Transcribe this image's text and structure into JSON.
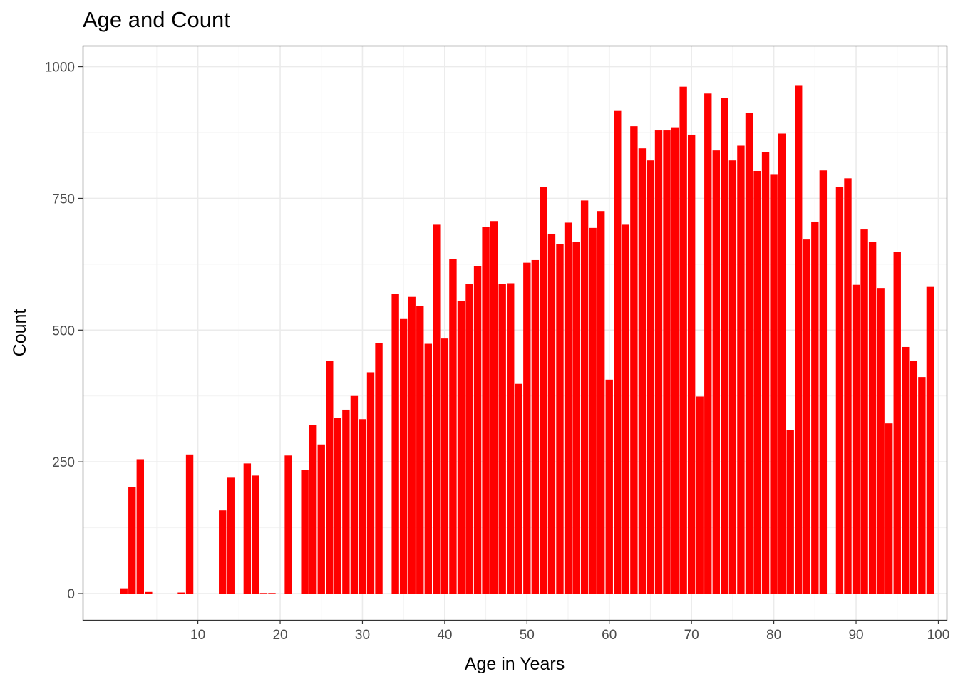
{
  "chart_data": {
    "type": "bar",
    "title": "Age and Count",
    "xlabel": "Age in Years",
    "ylabel": "Count",
    "bar_color": "#ff0000",
    "grid": true,
    "legend": "none",
    "xlim": [
      -4,
      101
    ],
    "ylim": [
      -50,
      1040
    ],
    "x_ticks": [
      10,
      20,
      30,
      40,
      50,
      60,
      70,
      80,
      90,
      100
    ],
    "y_ticks": [
      0,
      250,
      500,
      750,
      1000
    ],
    "x": [
      1,
      2,
      3,
      4,
      5,
      6,
      7,
      8,
      9,
      10,
      11,
      12,
      13,
      14,
      15,
      16,
      17,
      18,
      19,
      20,
      21,
      22,
      23,
      24,
      25,
      26,
      27,
      28,
      29,
      30,
      31,
      32,
      33,
      34,
      35,
      36,
      37,
      38,
      39,
      40,
      41,
      42,
      43,
      44,
      45,
      46,
      47,
      48,
      49,
      50,
      51,
      52,
      53,
      54,
      55,
      56,
      57,
      58,
      59,
      60,
      61,
      62,
      63,
      64,
      65,
      66,
      67,
      68,
      69,
      70,
      71,
      72,
      73,
      74,
      75,
      76,
      77,
      78,
      79,
      80,
      81,
      82,
      83,
      84,
      85,
      86,
      87,
      88,
      89,
      90,
      91,
      92,
      93,
      94,
      95,
      96,
      97,
      98,
      99
    ],
    "values": [
      10,
      202,
      255,
      3,
      0,
      0,
      0,
      2,
      264,
      0,
      0,
      0,
      158,
      220,
      0,
      247,
      224,
      1,
      1,
      0,
      262,
      0,
      235,
      320,
      283,
      441,
      334,
      349,
      375,
      331,
      420,
      476,
      0,
      569,
      521,
      563,
      546,
      474,
      700,
      484,
      635,
      555,
      588,
      621,
      696,
      707,
      587,
      589,
      398,
      628,
      633,
      771,
      683,
      664,
      704,
      667,
      746,
      694,
      726,
      406,
      916,
      700,
      887,
      845,
      822,
      879,
      879,
      885,
      962,
      871,
      374,
      949,
      841,
      940,
      822,
      850,
      912,
      802,
      838,
      796,
      873,
      311,
      965,
      672,
      706,
      803,
      0,
      771,
      788,
      586,
      691,
      667,
      580,
      323,
      648,
      468,
      441,
      411,
      582
    ]
  }
}
